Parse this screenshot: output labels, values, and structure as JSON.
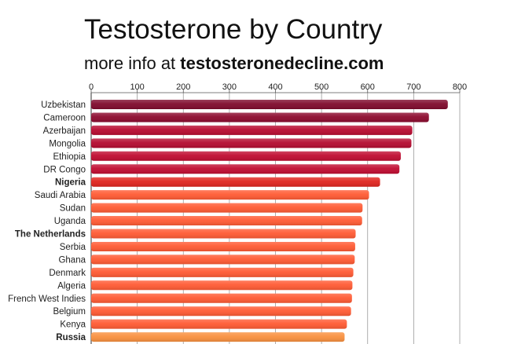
{
  "title": "Testosterone by Country",
  "subtitle": {
    "prefix": "more info at",
    "site": "testosteronedecline.com"
  },
  "chart_data": {
    "type": "bar",
    "orientation": "horizontal",
    "title": "Testosterone by Country",
    "xlabel": "",
    "ylabel": "",
    "xlim": [
      0,
      800
    ],
    "xticks": [
      0,
      100,
      200,
      300,
      400,
      500,
      600,
      700,
      800
    ],
    "axis_position": "top",
    "grid": true,
    "categories": [
      "Uzbekistan",
      "Cameroon",
      "Azerbaijan",
      "Mongolia",
      "Ethiopia",
      "DR Congo",
      "Nigeria",
      "Saudi Arabia",
      "Sudan",
      "Uganda",
      "The Netherlands",
      "Serbia",
      "Ghana",
      "Denmark",
      "Algeria",
      "French West Indies",
      "Belgium",
      "Kenya",
      "Russia"
    ],
    "values": [
      774,
      733,
      697,
      695,
      672,
      669,
      627,
      603,
      589,
      588,
      574,
      573,
      572,
      569,
      567,
      566,
      564,
      555,
      550
    ],
    "bold_categories": [
      "Nigeria",
      "The Netherlands",
      "Russia"
    ],
    "colors": [
      "#7f0a2c",
      "#8c0a2e",
      "#b80a30",
      "#b40a2f",
      "#bf0b30",
      "#c10b31",
      "#e0251f",
      "#ff5a33",
      "#ff5a33",
      "#ff5a33",
      "#ff5a33",
      "#ff5a33",
      "#ff5a33",
      "#ff5a33",
      "#ff5a33",
      "#ff5a33",
      "#ff5a33",
      "#ff5a33",
      "#f9903e"
    ]
  }
}
